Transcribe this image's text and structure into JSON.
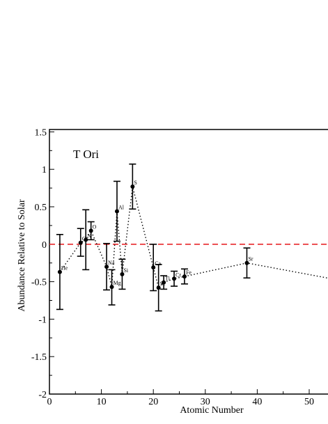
{
  "chart_data": {
    "type": "scatter",
    "annotation": "T Ori",
    "xlabel": "Atomic Number",
    "ylabel": "Abundance Relative to Solar",
    "xlim": [
      0,
      52
    ],
    "ylim": [
      -2,
      1.5
    ],
    "x_ticks": [
      "0",
      "10",
      "20",
      "30",
      "40",
      "50"
    ],
    "y_ticks": [
      "1.5",
      "1",
      "0.5",
      "0",
      "-0.5",
      "-1",
      "-1.5",
      "-2"
    ],
    "x_tick_values": [
      0,
      10,
      20,
      30,
      40,
      50
    ],
    "y_tick_values": [
      1.5,
      1,
      0.5,
      0,
      -0.5,
      -1,
      -1.5,
      -2
    ],
    "reference_line": {
      "y": 0,
      "style": "dashed",
      "color": "#e8262a"
    },
    "trend_line": {
      "style": "dotted",
      "color": "#000000",
      "extends_to": [
        55,
        -0.47
      ]
    },
    "points": [
      {
        "label": "He",
        "x": 2,
        "y": -0.37,
        "err_low": -0.87,
        "err_high": 0.13
      },
      {
        "label": "C",
        "x": 6,
        "y": 0.02,
        "err_low": -0.16,
        "err_high": 0.21
      },
      {
        "label": "N",
        "x": 7,
        "y": 0.06,
        "err_low": -0.34,
        "err_high": 0.46
      },
      {
        "label": "O",
        "x": 8,
        "y": 0.18,
        "err_low": 0.06,
        "err_high": 0.3
      },
      {
        "label": "Na",
        "x": 11,
        "y": -0.3,
        "err_low": -0.61,
        "err_high": 0.01
      },
      {
        "label": "Mg",
        "x": 12,
        "y": -0.57,
        "err_low": -0.81,
        "err_high": -0.34
      },
      {
        "label": "Al",
        "x": 13,
        "y": 0.44,
        "err_low": 0.04,
        "err_high": 0.84
      },
      {
        "label": "Si",
        "x": 14,
        "y": -0.4,
        "err_low": -0.6,
        "err_high": -0.2
      },
      {
        "label": "S",
        "x": 16,
        "y": 0.77,
        "err_low": 0.47,
        "err_high": 1.07
      },
      {
        "label": "Ca",
        "x": 20,
        "y": -0.31,
        "err_low": -0.62,
        "err_high": 0.0
      },
      {
        "label": "Sc",
        "x": 21,
        "y": -0.58,
        "err_low": -0.89,
        "err_high": -0.27
      },
      {
        "label": "Ti",
        "x": 22,
        "y": -0.51,
        "err_low": -0.6,
        "err_high": -0.42
      },
      {
        "label": "Cr",
        "x": 24,
        "y": -0.46,
        "err_low": -0.56,
        "err_high": -0.36
      },
      {
        "label": "Fe",
        "x": 26,
        "y": -0.43,
        "err_low": -0.53,
        "err_high": -0.33
      },
      {
        "label": "Sr",
        "x": 38,
        "y": -0.25,
        "err_low": -0.45,
        "err_high": -0.05
      }
    ]
  }
}
